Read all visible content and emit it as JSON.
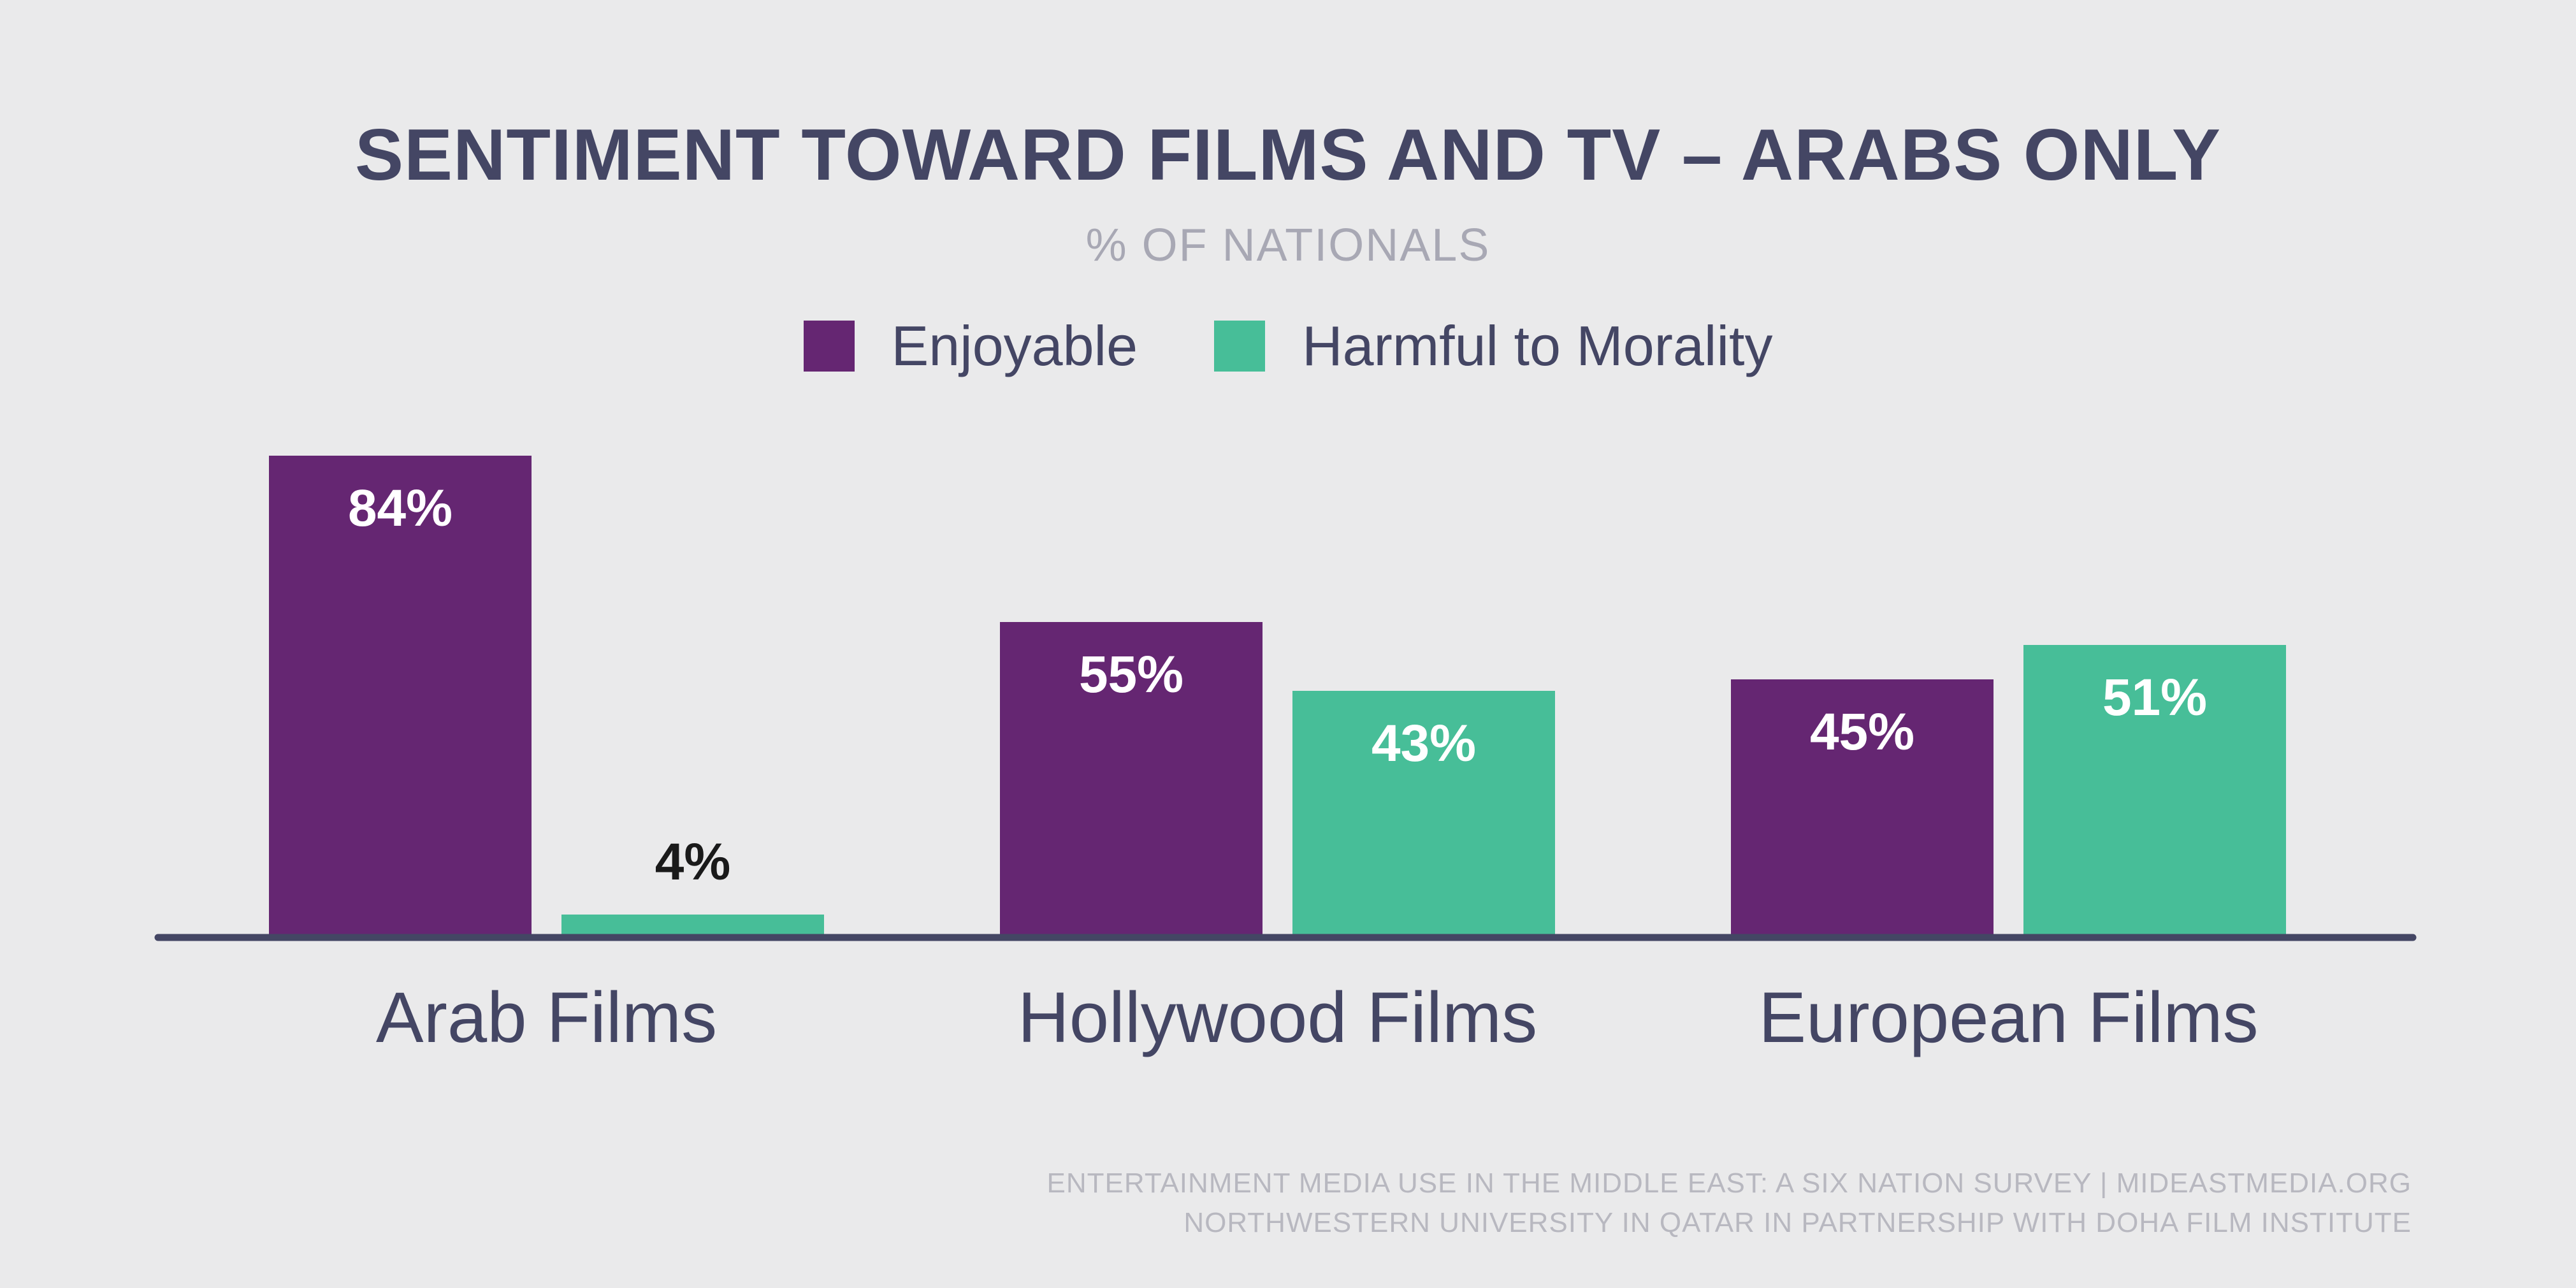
{
  "chart_data": {
    "type": "bar",
    "title": "SENTIMENT TOWARD FILMS AND TV – ARABS ONLY",
    "subtitle": "% OF NATIONALS",
    "categories": [
      "Arab Films",
      "Hollywood Films",
      "European Films"
    ],
    "series": [
      {
        "name": "Enjoyable",
        "color": "#652672",
        "values": [
          84,
          55,
          45
        ],
        "labels": [
          "84%",
          "55%",
          "45%"
        ]
      },
      {
        "name": "Harmful to Morality",
        "color": "#47be98",
        "values": [
          4,
          43,
          51
        ],
        "labels": [
          "4%",
          "43%",
          "51%"
        ]
      }
    ],
    "ylim": [
      0,
      100
    ],
    "grid": false,
    "legend_position": "top-center",
    "xlabel": "",
    "ylabel": ""
  },
  "footer": {
    "line1": "ENTERTAINMENT MEDIA USE IN THE MIDDLE EAST: A SIX NATION SURVEY | MIDEASTMEDIA.ORG",
    "line2": "NORTHWESTERN UNIVERSITY IN QATAR IN PARTNERSHIP WITH DOHA FILM INSTITUTE"
  },
  "colors": {
    "background": "#eaeaeb",
    "axis": "#444664",
    "text": "#444664",
    "label_light": "#ffffff",
    "label_dark": "#1a1a1a"
  }
}
